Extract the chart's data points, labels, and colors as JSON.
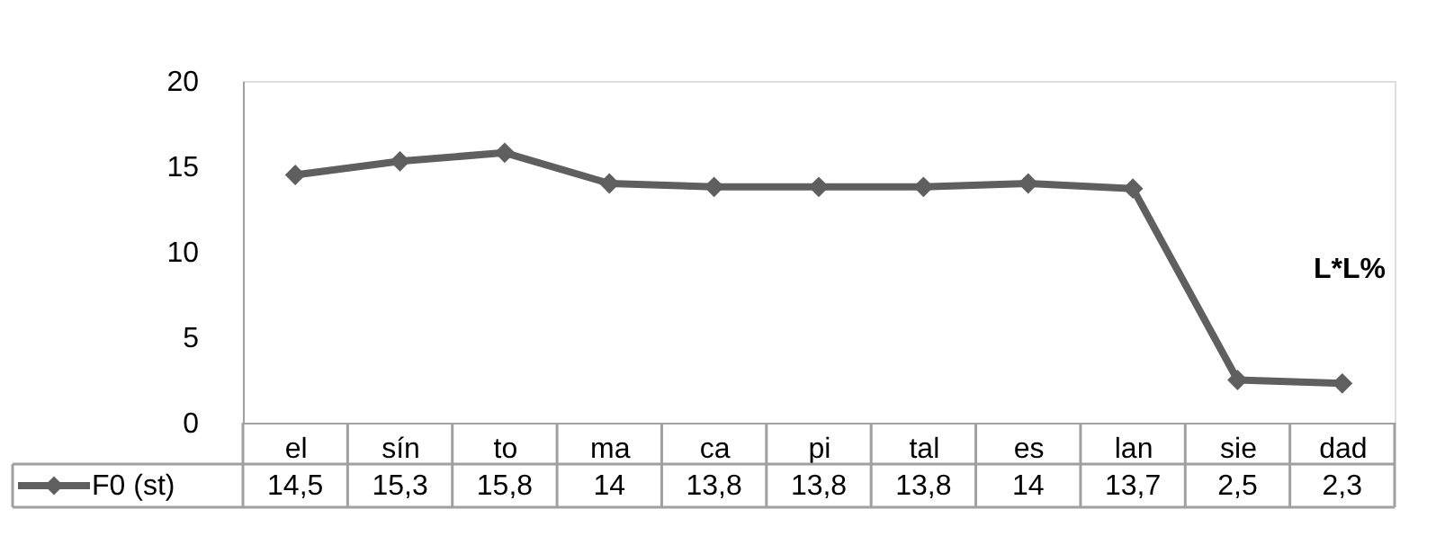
{
  "chart_data": {
    "type": "line",
    "categories": [
      "el",
      "sín",
      "to",
      "ma",
      "ca",
      "pi",
      "tal",
      "es",
      "lan",
      "sie",
      "dad"
    ],
    "series": [
      {
        "name": "F0 (st)",
        "color": "#5f5f5f",
        "values": [
          14.5,
          15.3,
          15.8,
          14,
          13.8,
          13.8,
          13.8,
          14,
          13.7,
          2.5,
          2.3
        ],
        "value_labels": [
          "14,5",
          "15,3",
          "15,8",
          "14",
          "13,8",
          "13,8",
          "13,8",
          "14",
          "13,7",
          "2,5",
          "2,3"
        ]
      }
    ],
    "ylim": [
      0,
      20
    ],
    "yticks": [
      0,
      5,
      10,
      15,
      20
    ],
    "annotations": [
      "L*L%"
    ],
    "marker": "diamond",
    "line_style": "solid",
    "grid": false,
    "legend": "bottom"
  }
}
